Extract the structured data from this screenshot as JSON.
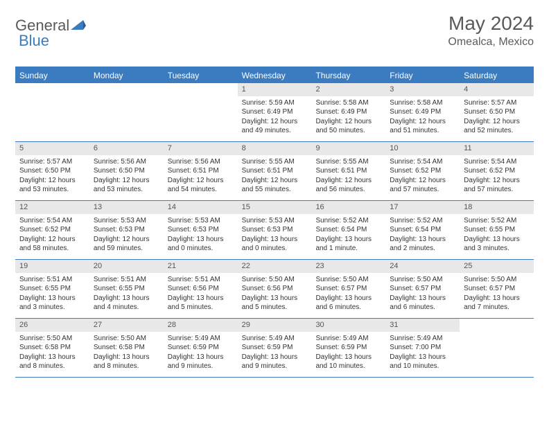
{
  "brand": {
    "part1": "General",
    "part2": "Blue"
  },
  "title": "May 2024",
  "location": "Omealca, Mexico",
  "colors": {
    "accent": "#3b7bbf",
    "header_text": "#ffffff",
    "daynum_bg": "#e8e8e8",
    "text": "#333333",
    "title_text": "#5a5a5a"
  },
  "weekdays": [
    "Sunday",
    "Monday",
    "Tuesday",
    "Wednesday",
    "Thursday",
    "Friday",
    "Saturday"
  ],
  "weeks": [
    [
      null,
      null,
      null,
      {
        "n": "1",
        "sunrise": "5:59 AM",
        "sunset": "6:49 PM",
        "daylight": "12 hours and 49 minutes."
      },
      {
        "n": "2",
        "sunrise": "5:58 AM",
        "sunset": "6:49 PM",
        "daylight": "12 hours and 50 minutes."
      },
      {
        "n": "3",
        "sunrise": "5:58 AM",
        "sunset": "6:49 PM",
        "daylight": "12 hours and 51 minutes."
      },
      {
        "n": "4",
        "sunrise": "5:57 AM",
        "sunset": "6:50 PM",
        "daylight": "12 hours and 52 minutes."
      }
    ],
    [
      {
        "n": "5",
        "sunrise": "5:57 AM",
        "sunset": "6:50 PM",
        "daylight": "12 hours and 53 minutes."
      },
      {
        "n": "6",
        "sunrise": "5:56 AM",
        "sunset": "6:50 PM",
        "daylight": "12 hours and 53 minutes."
      },
      {
        "n": "7",
        "sunrise": "5:56 AM",
        "sunset": "6:51 PM",
        "daylight": "12 hours and 54 minutes."
      },
      {
        "n": "8",
        "sunrise": "5:55 AM",
        "sunset": "6:51 PM",
        "daylight": "12 hours and 55 minutes."
      },
      {
        "n": "9",
        "sunrise": "5:55 AM",
        "sunset": "6:51 PM",
        "daylight": "12 hours and 56 minutes."
      },
      {
        "n": "10",
        "sunrise": "5:54 AM",
        "sunset": "6:52 PM",
        "daylight": "12 hours and 57 minutes."
      },
      {
        "n": "11",
        "sunrise": "5:54 AM",
        "sunset": "6:52 PM",
        "daylight": "12 hours and 57 minutes."
      }
    ],
    [
      {
        "n": "12",
        "sunrise": "5:54 AM",
        "sunset": "6:52 PM",
        "daylight": "12 hours and 58 minutes."
      },
      {
        "n": "13",
        "sunrise": "5:53 AM",
        "sunset": "6:53 PM",
        "daylight": "12 hours and 59 minutes."
      },
      {
        "n": "14",
        "sunrise": "5:53 AM",
        "sunset": "6:53 PM",
        "daylight": "13 hours and 0 minutes."
      },
      {
        "n": "15",
        "sunrise": "5:53 AM",
        "sunset": "6:53 PM",
        "daylight": "13 hours and 0 minutes."
      },
      {
        "n": "16",
        "sunrise": "5:52 AM",
        "sunset": "6:54 PM",
        "daylight": "13 hours and 1 minute."
      },
      {
        "n": "17",
        "sunrise": "5:52 AM",
        "sunset": "6:54 PM",
        "daylight": "13 hours and 2 minutes."
      },
      {
        "n": "18",
        "sunrise": "5:52 AM",
        "sunset": "6:55 PM",
        "daylight": "13 hours and 3 minutes."
      }
    ],
    [
      {
        "n": "19",
        "sunrise": "5:51 AM",
        "sunset": "6:55 PM",
        "daylight": "13 hours and 3 minutes."
      },
      {
        "n": "20",
        "sunrise": "5:51 AM",
        "sunset": "6:55 PM",
        "daylight": "13 hours and 4 minutes."
      },
      {
        "n": "21",
        "sunrise": "5:51 AM",
        "sunset": "6:56 PM",
        "daylight": "13 hours and 5 minutes."
      },
      {
        "n": "22",
        "sunrise": "5:50 AM",
        "sunset": "6:56 PM",
        "daylight": "13 hours and 5 minutes."
      },
      {
        "n": "23",
        "sunrise": "5:50 AM",
        "sunset": "6:57 PM",
        "daylight": "13 hours and 6 minutes."
      },
      {
        "n": "24",
        "sunrise": "5:50 AM",
        "sunset": "6:57 PM",
        "daylight": "13 hours and 6 minutes."
      },
      {
        "n": "25",
        "sunrise": "5:50 AM",
        "sunset": "6:57 PM",
        "daylight": "13 hours and 7 minutes."
      }
    ],
    [
      {
        "n": "26",
        "sunrise": "5:50 AM",
        "sunset": "6:58 PM",
        "daylight": "13 hours and 8 minutes."
      },
      {
        "n": "27",
        "sunrise": "5:50 AM",
        "sunset": "6:58 PM",
        "daylight": "13 hours and 8 minutes."
      },
      {
        "n": "28",
        "sunrise": "5:49 AM",
        "sunset": "6:59 PM",
        "daylight": "13 hours and 9 minutes."
      },
      {
        "n": "29",
        "sunrise": "5:49 AM",
        "sunset": "6:59 PM",
        "daylight": "13 hours and 9 minutes."
      },
      {
        "n": "30",
        "sunrise": "5:49 AM",
        "sunset": "6:59 PM",
        "daylight": "13 hours and 10 minutes."
      },
      {
        "n": "31",
        "sunrise": "5:49 AM",
        "sunset": "7:00 PM",
        "daylight": "13 hours and 10 minutes."
      },
      null
    ]
  ],
  "labels": {
    "sunrise": "Sunrise:",
    "sunset": "Sunset:",
    "daylight": "Daylight:"
  }
}
